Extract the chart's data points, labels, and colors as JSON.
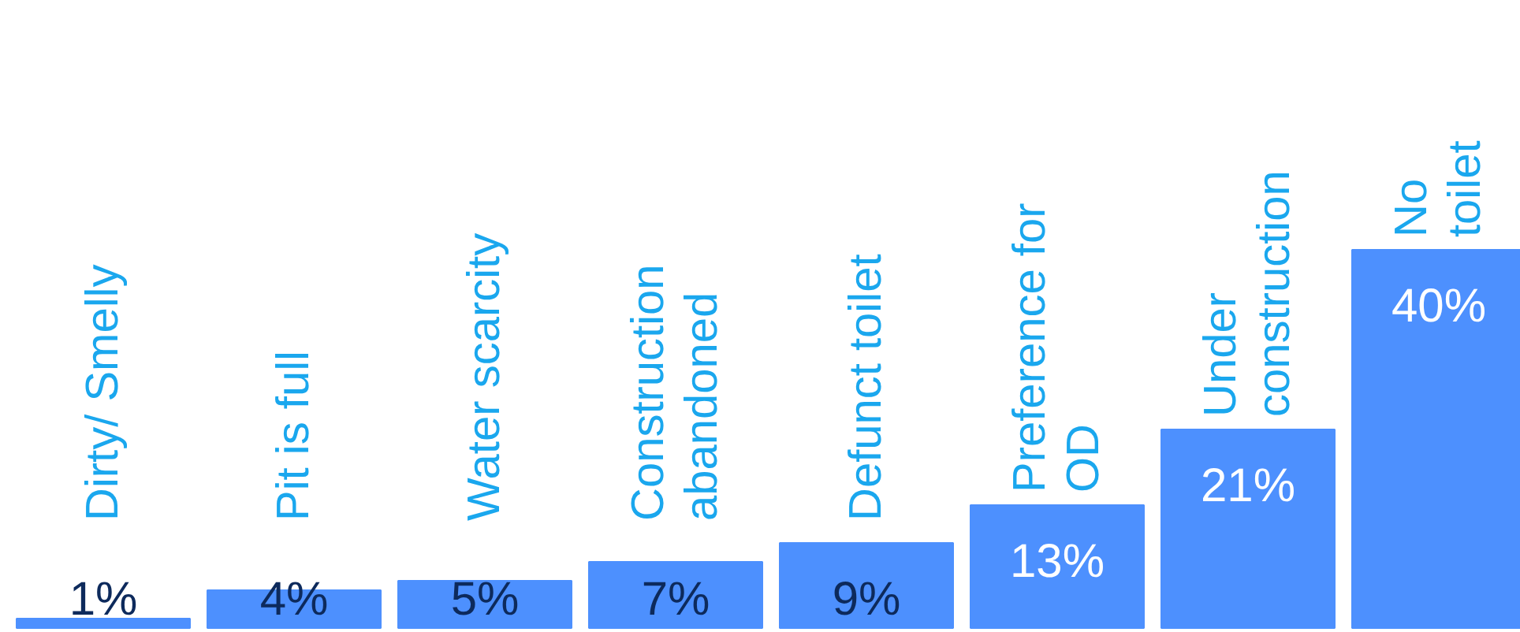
{
  "chart_data": {
    "type": "bar",
    "categories": [
      "Dirty/ Smelly",
      "Pit is full",
      "Water scarcity",
      "Construction\nabandoned",
      "Defunct toilet",
      "Preference for\nOD",
      "Under\nconstruction",
      "No\ntoilet"
    ],
    "values": [
      1,
      4,
      5,
      7,
      9,
      13,
      21,
      40
    ],
    "value_labels": [
      "1%",
      "4%",
      "5%",
      "7%",
      "9%",
      "13%",
      "21%",
      "40%"
    ],
    "color": "#4d90fe"
  }
}
